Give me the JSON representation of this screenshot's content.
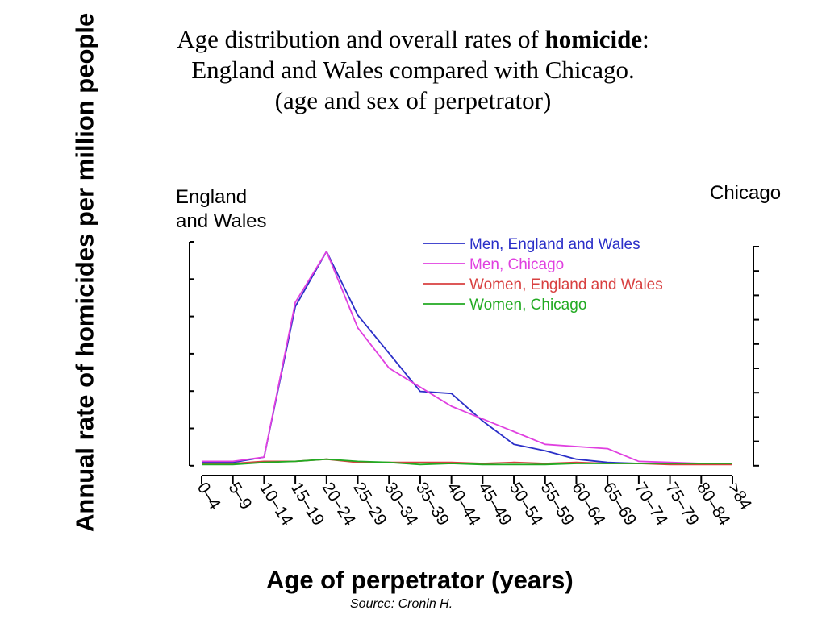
{
  "title": {
    "line1_before": "Age distribution and overall rates of ",
    "line1_bold": "homicide",
    "line1_after": ":",
    "line2": "England and Wales compared with Chicago.",
    "line3": "(age and sex of perpetrator)"
  },
  "source": "Source: Cronin H.",
  "chart_data": {
    "type": "line",
    "ylabel": "Annual rate of homicides per million people",
    "xlabel": "Age of perpetrator (years)",
    "left_axis_label": "England and Wales",
    "right_axis_label": "Chicago",
    "grid": false,
    "legend_position": "top-right",
    "categories": [
      "0–4",
      "5–9",
      "10–14",
      "15–19",
      "20–24",
      "25–29",
      "30–34",
      "35–39",
      "40–44",
      "45–49",
      "50–54",
      "55–59",
      "60–64",
      "65–69",
      "70–74",
      "75–79",
      "80–84",
      ">84"
    ],
    "series": [
      {
        "name": "Men, England and Wales",
        "color": "#2b2fc8",
        "values": [
          0.5,
          0.5,
          3,
          74,
          100,
          70,
          52,
          34,
          33,
          20,
          9,
          6,
          2,
          0.5,
          0,
          0,
          0,
          0
        ]
      },
      {
        "name": "Men, Chicago",
        "color": "#e040e0",
        "values": [
          1,
          1,
          3,
          76,
          100,
          64,
          45,
          36,
          27,
          21,
          15,
          9,
          8,
          7,
          1,
          0.5,
          0,
          0
        ]
      },
      {
        "name": "Women, England and Wales",
        "color": "#d84040",
        "values": [
          0,
          0,
          1,
          1,
          2,
          0.5,
          0.5,
          0.5,
          0.5,
          0,
          0.5,
          0,
          0.5,
          0,
          0,
          -0.5,
          -0.5,
          -0.5
        ]
      },
      {
        "name": "Women, Chicago",
        "color": "#22aa22",
        "values": [
          -0.5,
          -0.5,
          0.5,
          1,
          2,
          1,
          0.5,
          -0.5,
          0,
          -0.5,
          -0.5,
          -0.5,
          0,
          0,
          0,
          0,
          0,
          0
        ]
      }
    ]
  }
}
